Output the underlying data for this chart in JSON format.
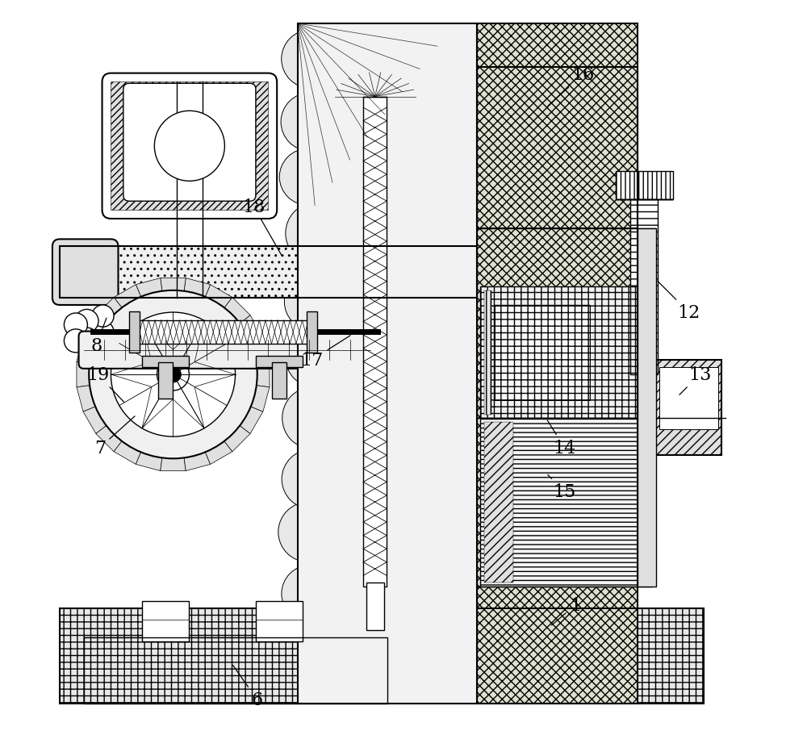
{
  "fig_width": 10.0,
  "fig_height": 9.12,
  "dpi": 100,
  "bg_color": "#ffffff",
  "line_color": "#000000",
  "label_positions": {
    "1": [
      0.735,
      0.175,
      0.7,
      0.145
    ],
    "6": [
      0.3,
      0.045,
      0.265,
      0.095
    ],
    "7": [
      0.085,
      0.39,
      0.135,
      0.435
    ],
    "8": [
      0.08,
      0.53,
      0.095,
      0.57
    ],
    "12": [
      0.89,
      0.575,
      0.845,
      0.62
    ],
    "13": [
      0.905,
      0.49,
      0.875,
      0.46
    ],
    "14": [
      0.72,
      0.39,
      0.695,
      0.43
    ],
    "15": [
      0.72,
      0.33,
      0.695,
      0.355
    ],
    "16": [
      0.745,
      0.9,
      0.695,
      0.855
    ],
    "17": [
      0.375,
      0.51,
      0.43,
      0.545
    ],
    "18": [
      0.295,
      0.72,
      0.335,
      0.65
    ],
    "19": [
      0.082,
      0.49,
      0.12,
      0.45
    ]
  }
}
